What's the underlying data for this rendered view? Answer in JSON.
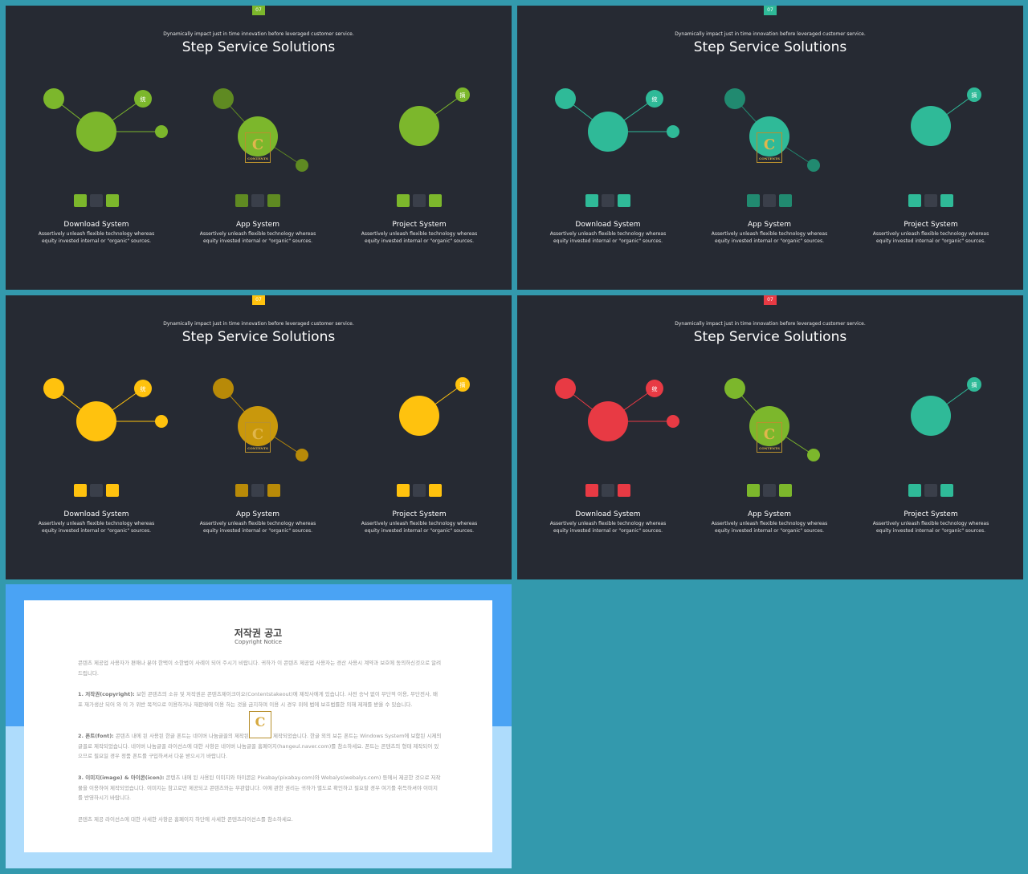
{
  "slides": [
    {
      "badge": "07",
      "subtitle": "Dynamically impact just in time innovation  before leveraged customer service.",
      "title": "Step Service Solutions",
      "colors": {
        "download": "#7cb72c",
        "download_dark": "#7cb72c",
        "app": "#7cb72c",
        "app_dark": "#5f8a22",
        "project": "#7cb72c"
      },
      "icons": {
        "download_small": "统",
        "project_small": "摘"
      },
      "sections": [
        {
          "title": "Download  System",
          "desc1": "Assertively unleash flexible technology whereas",
          "desc2": "equity invested internal or \"organic\" sources."
        },
        {
          "title": "App  System",
          "desc1": "Assertively unleash flexible technology whereas",
          "desc2": "equity invested internal or \"organic\" sources."
        },
        {
          "title": "Project  System",
          "desc1": "Assertively unleash flexible technology whereas",
          "desc2": "equity invested internal or \"organic\" sources."
        }
      ]
    },
    {
      "badge": "07",
      "subtitle": "Dynamically impact just in time innovation  before leveraged customer service.",
      "title": "Step Service Solutions",
      "colors": {
        "download": "#2fba98",
        "download_dark": "#2fba98",
        "app": "#2fba98",
        "app_dark": "#218a70",
        "project": "#2fba98"
      },
      "icons": {
        "download_small": "统",
        "project_small": "摘"
      },
      "sections": [
        {
          "title": "Download  System",
          "desc1": "Assertively unleash flexible technology whereas",
          "desc2": "equity invested internal or \"organic\" sources."
        },
        {
          "title": "App  System",
          "desc1": "Assertively unleash flexible technology whereas",
          "desc2": "equity invested internal or \"organic\" sources."
        },
        {
          "title": "Project  System",
          "desc1": "Assertively unleash flexible technology whereas",
          "desc2": "equity invested internal or \"organic\" sources."
        }
      ]
    },
    {
      "badge": "07",
      "subtitle": "Dynamically impact just in time innovation  before leveraged customer service.",
      "title": "Step Service Solutions",
      "colors": {
        "download": "#ffc20e",
        "download_dark": "#ffc20e",
        "app": "#c9980c",
        "app_dark": "#b88a08",
        "project": "#ffc20e"
      },
      "icons": {
        "download_small": "统",
        "project_small": "摘"
      },
      "sections": [
        {
          "title": "Download  System",
          "desc1": "Assertively unleash flexible technology whereas",
          "desc2": "equity invested internal or \"organic\" sources."
        },
        {
          "title": "App  System",
          "desc1": "Assertively unleash flexible technology whereas",
          "desc2": "equity invested internal or \"organic\" sources."
        },
        {
          "title": "Project  System",
          "desc1": "Assertively unleash flexible technology whereas",
          "desc2": "equity invested internal or \"organic\" sources."
        }
      ]
    },
    {
      "badge": "07",
      "subtitle": "Dynamically impact just in time innovation  before leveraged customer service.",
      "title": "Step Service Solutions",
      "colors": {
        "download": "#e83a44",
        "download_dark": "#e83a44",
        "app": "#7cb72c",
        "app_dark": "#7cb72c",
        "project": "#2fba98"
      },
      "icons": {
        "download_small": "统",
        "project_small": "摘"
      },
      "sections": [
        {
          "title": "Download  System",
          "desc1": "Assertively unleash flexible technology whereas",
          "desc2": "equity invested internal or \"organic\" sources."
        },
        {
          "title": "App  System",
          "desc1": "Assertively unleash flexible technology whereas",
          "desc2": "equity invested internal or \"organic\" sources."
        },
        {
          "title": "Project  System",
          "desc1": "Assertively unleash flexible technology whereas",
          "desc2": "equity invested internal or \"organic\" sources."
        }
      ]
    }
  ],
  "badge_colors": [
    "#7cb72c",
    "#2fba98",
    "#ffc20e",
    "#e83a44"
  ],
  "watermark": {
    "letter": "C",
    "sub": "CONTENTS"
  },
  "copyright": {
    "title": "저작권 공고",
    "subtitle": "Copyright Notice",
    "p0": "콘텐츠 제공업 사용자가 편애나 분야 한택이 소한법이 사례이 되어 주시기 비랍니다. 귀하가 이 콘텐츠 제공업 사용자는 경산 사용시 계약과 보호에 동의하신것으로 알려 드립니다.",
    "p1_head": "1. 저작권(copyright):",
    "p1": " 보헌 콘텐츠의 소유 및 저작권은 콘텐츠제이크이오(Contentstakeout)에 제작사에게 있습니다. 사전 승낙 없이 무단적 이용, 무단전사, 배포 재가생산 되어 와 이 가 위반 목적으로 이용하거나 재판매에 이용 하는 것을 금지하며 이용 시 경우 위에 법에 보호법률한 의해 제재를 받을 수 있습니다.",
    "p2_head": "2. 폰트(font):",
    "p2": " 콘텐츠 내에 된 사용된 한글 폰트는 네이버 나눔글꼴의 제작된 거 의하여 제작되었습니다. 한글 외의 보든 폰트는 Windows System에 보함된 시제의 글꼴로 제작되었습니다. 네이버 나눔글꼴 라이선스에 대한 사항은 네이버 나눔글꼴 홈페이지(hangeul.naver.com)를 참소하세요. 폰트는 콘텐츠의 형태 제작되어 있으므로 필요일 경우 정품 폰트를 구입하셔서 다운 받으시기 바랍니다.",
    "p3_head": "3. 이미지(image) & 아이콘(icon):",
    "p3": " 콘텐츠 내에 된 사용된 이미지와 아이콘은 Pixabay(pixabay.com)와 Webalys(webalys.com) 등에서 제공한 것으로 저작물을 이용하여 제작되었습니다. 이미지는 참고로만 제공되고 콘텐츠와는 무관합니다. 이에 관한 권리는 귀하가 별도로 확인하고 필요할 경우 여기를 취득하셔야 이미지를 반영하시기 바랍니다.",
    "p4": "콘텐츠 제공 라이선스에 대한 사세한 사항은 홈페이지 하단에 사세한 콘텐츠라이선스를 참소하세요."
  }
}
